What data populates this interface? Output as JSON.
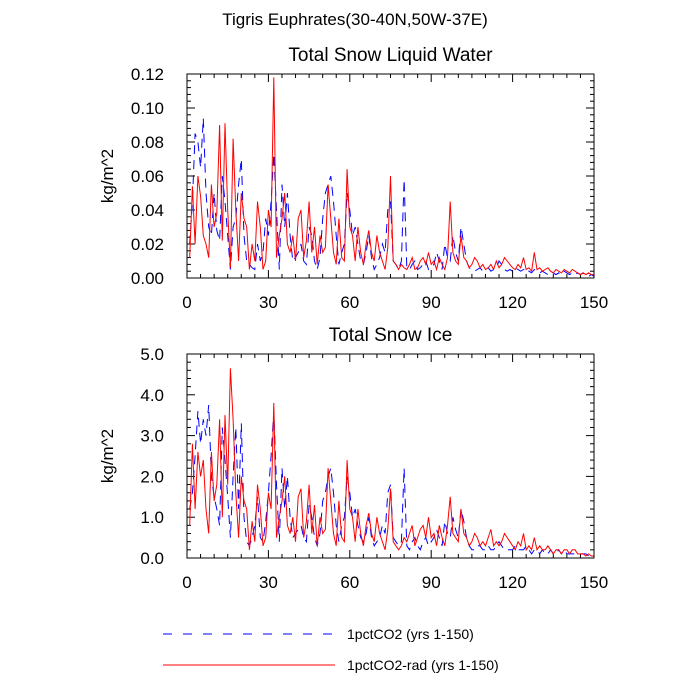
{
  "figure_title": "Tigris Euphrates(30-40N,50W-37E)",
  "legend": [
    {
      "label": "1pctCO2 (yrs 1-150)",
      "color": "#0000ff",
      "dash": "dashed"
    },
    {
      "label": "1pctCO2-rad (yrs 1-150)",
      "color": "#ff0000",
      "dash": "solid"
    }
  ],
  "chart_data": [
    {
      "type": "line",
      "title": "Total Snow Liquid Water",
      "xlabel": "",
      "ylabel": "kg/m^2",
      "xlim": [
        0,
        150
      ],
      "ylim": [
        0,
        0.12
      ],
      "xticks": [
        0,
        30,
        60,
        90,
        120,
        150
      ],
      "xtick_labels": [
        "0",
        "30",
        "60",
        "90",
        "120",
        "150"
      ],
      "yticks": [
        0,
        0.02,
        0.04,
        0.06,
        0.08,
        0.1,
        0.12
      ],
      "ytick_labels": [
        "0.00",
        "0.02",
        "0.04",
        "0.06",
        "0.08",
        "0.10",
        "0.12"
      ],
      "x": [
        1,
        2,
        3,
        4,
        5,
        6,
        7,
        8,
        9,
        10,
        11,
        12,
        13,
        14,
        15,
        16,
        17,
        18,
        19,
        20,
        21,
        22,
        23,
        24,
        25,
        26,
        27,
        28,
        29,
        30,
        31,
        32,
        33,
        34,
        35,
        36,
        37,
        38,
        39,
        40,
        41,
        42,
        43,
        44,
        45,
        46,
        47,
        48,
        49,
        50,
        51,
        52,
        53,
        54,
        55,
        56,
        57,
        58,
        59,
        60,
        61,
        62,
        63,
        64,
        65,
        66,
        67,
        68,
        69,
        70,
        71,
        72,
        73,
        74,
        75,
        76,
        77,
        78,
        79,
        80,
        81,
        82,
        83,
        84,
        85,
        86,
        87,
        88,
        89,
        90,
        91,
        92,
        93,
        94,
        95,
        96,
        97,
        98,
        99,
        100,
        101,
        102,
        103,
        104,
        105,
        106,
        107,
        108,
        109,
        110,
        111,
        112,
        113,
        114,
        115,
        116,
        117,
        118,
        119,
        120,
        121,
        122,
        123,
        124,
        125,
        126,
        127,
        128,
        129,
        130,
        131,
        132,
        133,
        134,
        135,
        136,
        137,
        138,
        139,
        140,
        141,
        142,
        143,
        144,
        145,
        146,
        147,
        148,
        149,
        150
      ],
      "series": [
        {
          "name": "1pctCO2 (yrs 1-150)",
          "color": "#0000ff",
          "dash": "dashed",
          "values": [
            0.02,
            0.045,
            0.085,
            0.08,
            0.065,
            0.094,
            0.05,
            0.03,
            0.025,
            0.05,
            0.028,
            0.022,
            0.06,
            0.045,
            0.025,
            0.005,
            0.03,
            0.035,
            0.055,
            0.07,
            0.025,
            0.01,
            0.008,
            0.006,
            0.005,
            0.02,
            0.01,
            0.015,
            0.035,
            0.025,
            0.045,
            0.073,
            0.04,
            0.005,
            0.055,
            0.03,
            0.05,
            0.025,
            0.01,
            0.012,
            0.015,
            0.02,
            0.01,
            0.008,
            0.03,
            0.025,
            0.01,
            0.005,
            0.012,
            0.035,
            0.05,
            0.055,
            0.06,
            0.045,
            0.025,
            0.008,
            0.015,
            0.02,
            0.05,
            0.04,
            0.025,
            0.03,
            0.02,
            0.01,
            0.008,
            0.015,
            0.025,
            0.012,
            0.005,
            0.008,
            0.012,
            0.02,
            0.015,
            0.04,
            0.045,
            0.01,
            0.008,
            0.005,
            0.01,
            0.058,
            0.006,
            0.005,
            0.008,
            0.01,
            0.005,
            0.006,
            0.008,
            0.01,
            0.005,
            0.006,
            0.008,
            0.015,
            0.01,
            0.005,
            0.02,
            0.012,
            0.01,
            0.025,
            0.015,
            0.01,
            0.03,
            0.02,
            0.01,
            0.006,
            0.005,
            0.004,
            0.005,
            0.006,
            0.004,
            0.005,
            0.006,
            0.004,
            0.005,
            0.006,
            0.01,
            0.008,
            0.005,
            0.004,
            0.005,
            0.004,
            0.006,
            0.005,
            0.004,
            0.005,
            0.006,
            0.004,
            0.003,
            0.005,
            0.004,
            0.003,
            0.004,
            0.003,
            0.002,
            0.004,
            0.003,
            0.002,
            0.003,
            0.002,
            0.004,
            0.003,
            0.002,
            0.003,
            0.002,
            0.003,
            0.002,
            0.003,
            0.002,
            0.001,
            0.002,
            0.001
          ]
        },
        {
          "name": "1pctCO2-rad (yrs 1-150)",
          "color": "#ff0000",
          "dash": "solid",
          "values": [
            0.012,
            0.054,
            0.02,
            0.06,
            0.048,
            0.025,
            0.02,
            0.012,
            0.055,
            0.03,
            0.038,
            0.09,
            0.022,
            0.091,
            0.04,
            0.006,
            0.082,
            0.04,
            0.01,
            0.05,
            0.035,
            0.03,
            0.005,
            0.02,
            0.01,
            0.045,
            0.03,
            0.005,
            0.01,
            0.04,
            0.03,
            0.118,
            0.012,
            0.025,
            0.035,
            0.05,
            0.02,
            0.015,
            0.025,
            0.01,
            0.035,
            0.04,
            0.012,
            0.022,
            0.045,
            0.015,
            0.03,
            0.008,
            0.025,
            0.015,
            0.018,
            0.055,
            0.035,
            0.015,
            0.008,
            0.035,
            0.012,
            0.01,
            0.064,
            0.03,
            0.025,
            0.01,
            0.03,
            0.015,
            0.008,
            0.02,
            0.028,
            0.015,
            0.01,
            0.025,
            0.015,
            0.01,
            0.005,
            0.018,
            0.06,
            0.01,
            0.008,
            0.005,
            0.008,
            0.006,
            0.005,
            0.008,
            0.012,
            0.005,
            0.006,
            0.01,
            0.012,
            0.008,
            0.015,
            0.008,
            0.01,
            0.005,
            0.012,
            0.008,
            0.005,
            0.012,
            0.045,
            0.015,
            0.01,
            0.008,
            0.025,
            0.012,
            0.01,
            0.006,
            0.008,
            0.012,
            0.01,
            0.006,
            0.008,
            0.005,
            0.006,
            0.008,
            0.005,
            0.01,
            0.006,
            0.008,
            0.012,
            0.01,
            0.008,
            0.006,
            0.005,
            0.008,
            0.006,
            0.012,
            0.005,
            0.006,
            0.004,
            0.015,
            0.005,
            0.006,
            0.004,
            0.005,
            0.006,
            0.004,
            0.003,
            0.005,
            0.004,
            0.003,
            0.005,
            0.004,
            0.003,
            0.005,
            0.004,
            0.003,
            0.002,
            0.003,
            0.002,
            0.003,
            0.002,
            0.002
          ]
        }
      ]
    },
    {
      "type": "line",
      "title": "Total Snow Ice",
      "xlabel": "",
      "ylabel": "kg/m^2",
      "xlim": [
        0,
        150
      ],
      "ylim": [
        0,
        5
      ],
      "xticks": [
        0,
        30,
        60,
        90,
        120,
        150
      ],
      "xtick_labels": [
        "0",
        "30",
        "60",
        "90",
        "120",
        "150"
      ],
      "yticks": [
        0,
        1,
        2,
        3,
        4,
        5
      ],
      "ytick_labels": [
        "0.0",
        "1.0",
        "2.0",
        "3.0",
        "4.0",
        "5.0"
      ],
      "x": [
        1,
        2,
        3,
        4,
        5,
        6,
        7,
        8,
        9,
        10,
        11,
        12,
        13,
        14,
        15,
        16,
        17,
        18,
        19,
        20,
        21,
        22,
        23,
        24,
        25,
        26,
        27,
        28,
        29,
        30,
        31,
        32,
        33,
        34,
        35,
        36,
        37,
        38,
        39,
        40,
        41,
        42,
        43,
        44,
        45,
        46,
        47,
        48,
        49,
        50,
        51,
        52,
        53,
        54,
        55,
        56,
        57,
        58,
        59,
        60,
        61,
        62,
        63,
        64,
        65,
        66,
        67,
        68,
        69,
        70,
        71,
        72,
        73,
        74,
        75,
        76,
        77,
        78,
        79,
        80,
        81,
        82,
        83,
        84,
        85,
        86,
        87,
        88,
        89,
        90,
        91,
        92,
        93,
        94,
        95,
        96,
        97,
        98,
        99,
        100,
        101,
        102,
        103,
        104,
        105,
        106,
        107,
        108,
        109,
        110,
        111,
        112,
        113,
        114,
        115,
        116,
        117,
        118,
        119,
        120,
        121,
        122,
        123,
        124,
        125,
        126,
        127,
        128,
        129,
        130,
        131,
        132,
        133,
        134,
        135,
        136,
        137,
        138,
        139,
        140,
        141,
        142,
        143,
        144,
        145,
        146,
        147,
        148,
        149,
        150
      ],
      "series": [
        {
          "name": "1pctCO2 (yrs 1-150)",
          "color": "#0000ff",
          "dash": "dashed",
          "values": [
            1.2,
            1.6,
            2.5,
            3.6,
            2.8,
            3.4,
            3.0,
            3.75,
            2.0,
            1.5,
            1.2,
            0.8,
            3.2,
            2.4,
            1.5,
            0.5,
            2.0,
            3.2,
            1.2,
            3.3,
            1.0,
            0.4,
            0.3,
            0.5,
            0.8,
            1.5,
            0.5,
            0.4,
            0.9,
            1.6,
            2.5,
            3.6,
            1.8,
            0.4,
            2.2,
            1.2,
            2.0,
            1.0,
            0.5,
            0.6,
            0.7,
            0.8,
            0.5,
            0.4,
            1.3,
            1.0,
            0.5,
            0.3,
            0.6,
            1.4,
            1.6,
            2.0,
            2.2,
            1.6,
            0.8,
            0.4,
            0.8,
            1.0,
            2.0,
            1.6,
            1.0,
            1.2,
            0.8,
            0.5,
            0.4,
            0.6,
            1.0,
            0.5,
            0.3,
            0.4,
            0.5,
            0.8,
            0.6,
            1.6,
            1.8,
            0.5,
            0.4,
            0.3,
            0.4,
            2.2,
            0.3,
            0.2,
            0.4,
            0.5,
            0.3,
            0.2,
            0.4,
            0.5,
            0.3,
            0.4,
            0.5,
            0.7,
            0.5,
            0.3,
            0.9,
            0.6,
            0.5,
            1.0,
            0.7,
            0.5,
            1.2,
            0.9,
            0.5,
            0.3,
            0.2,
            0.2,
            0.3,
            0.3,
            0.2,
            0.2,
            0.3,
            0.2,
            0.2,
            0.3,
            0.4,
            0.3,
            0.2,
            0.2,
            0.2,
            0.2,
            0.3,
            0.2,
            0.2,
            0.2,
            0.3,
            0.2,
            0.1,
            0.2,
            0.2,
            0.1,
            0.2,
            0.1,
            0.1,
            0.2,
            0.1,
            0.1,
            0.2,
            0.1,
            0.2,
            0.1,
            0.1,
            0.1,
            0.1,
            0.1,
            0.1,
            0.1,
            0.1,
            0.05,
            0.1,
            0.05
          ]
        },
        {
          "name": "1pctCO2-rad (yrs 1-150)",
          "color": "#ff0000",
          "dash": "solid",
          "values": [
            0.8,
            2.8,
            1.2,
            2.6,
            2.0,
            2.4,
            1.2,
            0.6,
            2.6,
            1.4,
            1.8,
            3.4,
            1.0,
            3.5,
            1.8,
            4.65,
            3.4,
            1.6,
            0.5,
            2.0,
            1.4,
            1.2,
            0.2,
            0.9,
            0.4,
            1.8,
            1.2,
            0.3,
            0.5,
            1.6,
            1.2,
            3.8,
            0.5,
            1.0,
            1.4,
            2.0,
            0.8,
            0.6,
            1.0,
            0.4,
            1.5,
            1.7,
            0.5,
            0.9,
            1.8,
            0.6,
            1.3,
            0.3,
            1.0,
            0.6,
            0.7,
            2.2,
            1.4,
            0.6,
            0.3,
            1.4,
            0.5,
            0.4,
            2.4,
            1.2,
            1.0,
            0.4,
            1.2,
            0.6,
            0.3,
            0.8,
            1.1,
            0.6,
            0.4,
            1.0,
            0.6,
            0.4,
            0.2,
            0.7,
            1.7,
            0.4,
            0.3,
            0.2,
            0.3,
            0.5,
            0.4,
            0.6,
            0.8,
            0.3,
            0.5,
            0.7,
            0.8,
            0.5,
            1.0,
            0.5,
            0.6,
            0.3,
            0.8,
            0.5,
            0.3,
            0.8,
            1.5,
            0.6,
            0.5,
            0.4,
            1.2,
            0.6,
            0.5,
            0.3,
            0.4,
            0.6,
            0.5,
            0.3,
            0.4,
            0.3,
            0.5,
            0.7,
            0.3,
            0.4,
            0.3,
            0.4,
            0.6,
            0.5,
            0.4,
            0.3,
            0.2,
            0.4,
            0.3,
            0.6,
            0.2,
            0.3,
            0.2,
            0.5,
            0.2,
            0.3,
            0.2,
            0.2,
            0.3,
            0.2,
            0.1,
            0.2,
            0.2,
            0.1,
            0.2,
            0.2,
            0.1,
            0.2,
            0.2,
            0.1,
            0.1,
            0.1,
            0.05,
            0.1,
            0.05,
            0.05
          ]
        }
      ]
    }
  ]
}
